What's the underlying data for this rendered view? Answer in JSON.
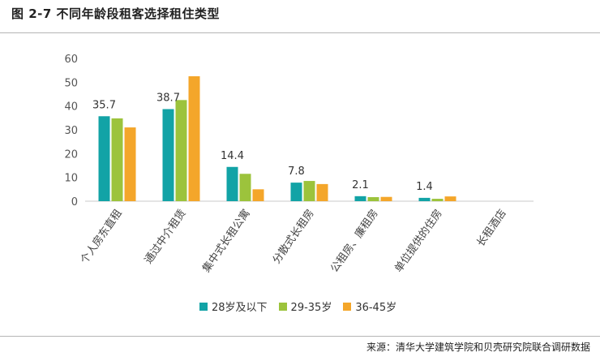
{
  "figure": {
    "title": "图 2-7  不同年龄段租客选择租住类型",
    "source": "来源：清华大学建筑学院和贝壳研究院联合调研数据"
  },
  "chart_data": {
    "type": "bar",
    "title": "图 2-7  不同年龄段租客选择租住类型",
    "categories": [
      "个人房东直租",
      "通过中介租赁",
      "集中式长租公寓",
      "分散式长租房",
      "公租房、廉租房",
      "单位提供的住房",
      "长租酒店"
    ],
    "series": [
      {
        "name": "28岁及以下",
        "color": "#12a3a6",
        "values": [
          35.7,
          38.7,
          14.4,
          7.8,
          2.1,
          1.4,
          0
        ]
      },
      {
        "name": "29-35岁",
        "color": "#9cc33c",
        "values": [
          34.8,
          42.5,
          11.5,
          8.5,
          1.7,
          1.0,
          0
        ]
      },
      {
        "name": "36-45岁",
        "color": "#f4a62a",
        "values": [
          31.0,
          52.5,
          5.0,
          7.2,
          1.8,
          2.0,
          0
        ]
      }
    ],
    "data_labels": [
      "35.7",
      "38.7",
      "14.4",
      "7.8",
      "2.1",
      "1.4",
      ""
    ],
    "yticks": [
      0,
      10,
      20,
      30,
      40,
      50,
      60
    ],
    "ylim": [
      0,
      60
    ],
    "xlabel": "",
    "ylabel": "",
    "grid": false,
    "legend_position": "bottom"
  }
}
